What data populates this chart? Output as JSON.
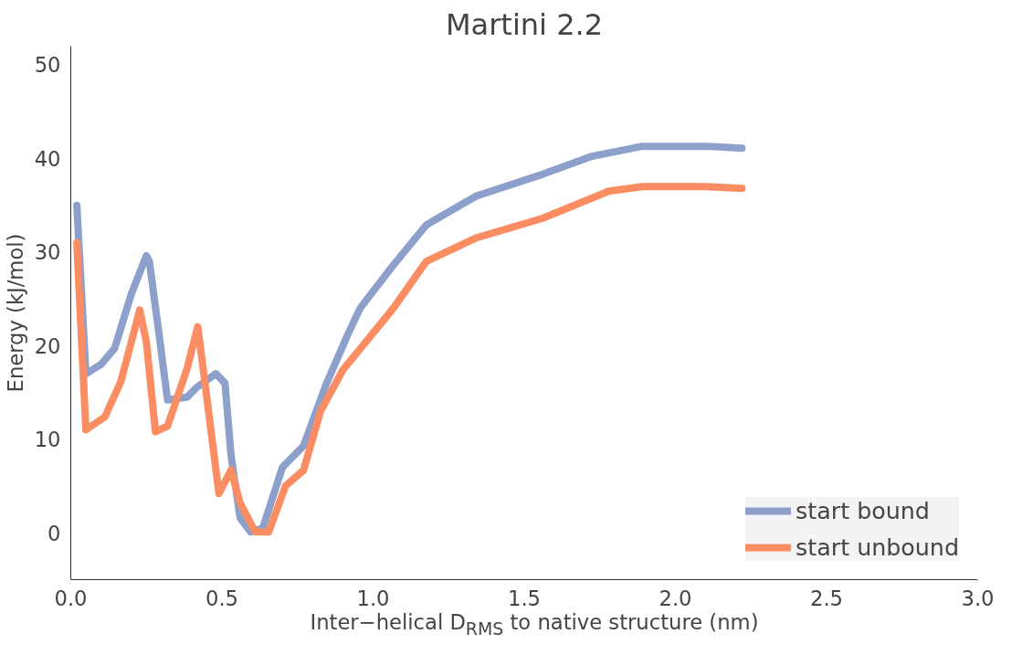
{
  "chart_data": {
    "type": "line",
    "title": "Martini 2.2",
    "xlabel": "Inter−helical D$_{RMS}$ to native structure (nm)",
    "ylabel": "Energy (kJ/mol)",
    "xlim": [
      0,
      3.0
    ],
    "ylim": [
      -5,
      52
    ],
    "xticks": [
      {
        "value": 0,
        "label": "0.0"
      },
      0.5,
      {
        "value": 1,
        "label": "1.0"
      },
      1.5,
      {
        "value": 2,
        "label": "2.0"
      },
      2.5,
      {
        "value": 3,
        "label": "3.0"
      }
    ],
    "yticks": [
      0,
      10,
      20,
      30,
      40,
      50
    ],
    "grid": false,
    "legend": "bottom right",
    "marker": "none",
    "line_style": "solid",
    "series": [
      {
        "name": "start bound",
        "color": "#8da0cb",
        "x": [
          0.02,
          0.05,
          0.1,
          0.145,
          0.2,
          0.25,
          0.26,
          0.29,
          0.32,
          0.385,
          0.415,
          0.48,
          0.51,
          0.53,
          0.56,
          0.595,
          0.635,
          0.7,
          0.77,
          0.845,
          0.915,
          0.957,
          1.067,
          1.176,
          1.342,
          1.56,
          1.72,
          1.89,
          2.11,
          2.22
        ],
        "values": [
          35,
          17,
          18,
          19.7,
          25.5,
          29.6,
          29,
          21.7,
          14.2,
          14.5,
          15.5,
          17,
          16,
          8.3,
          1.6,
          0.1,
          0.5,
          7,
          9.3,
          15.9,
          21.1,
          24,
          28.6,
          32.9,
          36,
          38.3,
          40.2,
          41.3,
          41.3,
          41.1
        ]
      },
      {
        "name": "start unbound",
        "color": "#fc8d62",
        "x": [
          0.02,
          0.05,
          0.113,
          0.166,
          0.228,
          0.25,
          0.28,
          0.32,
          0.385,
          0.42,
          0.44,
          0.49,
          0.53,
          0.56,
          0.61,
          0.655,
          0.71,
          0.77,
          0.826,
          0.9,
          1.067,
          1.176,
          1.34,
          1.56,
          1.78,
          1.89,
          2.1,
          2.22
        ],
        "values": [
          31,
          11,
          12.4,
          16.2,
          23.8,
          20.4,
          10.8,
          11.4,
          17.6,
          22,
          17,
          4.2,
          6.7,
          3.2,
          0.1,
          0.1,
          5,
          6.7,
          13,
          17.4,
          24,
          29,
          31.5,
          33.6,
          36.5,
          37,
          37,
          36.8
        ]
      }
    ]
  }
}
